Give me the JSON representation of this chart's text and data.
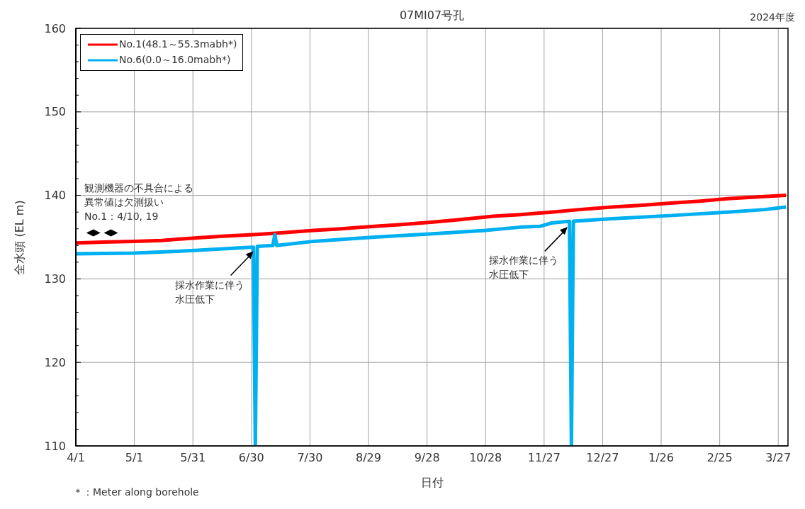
{
  "chart_data": {
    "type": "line",
    "title": "07MI07号孔",
    "xlabel": "日付",
    "ylabel": "全水頭 (EL m)",
    "annotations": [
      "2024年度",
      "観測機器の不具合による異常値は欠測扱い",
      "No.1：4/10, 19",
      "＊：Meter along borehole",
      {
        "text": "採水作業に伴う水圧低下",
        "x": "2024-07-01",
        "y": 133.3
      },
      {
        "text": "採水作業に伴う水圧低下",
        "x": "2024-12-09",
        "y": 136.2
      }
    ],
    "xlim": [
      "2024-04-01",
      "2025-04-01"
    ],
    "xticks": [
      {
        "value": "2024-04-01",
        "label": "4/1"
      },
      {
        "value": "2024-05-01",
        "label": "5/1"
      },
      {
        "value": "2024-05-31",
        "label": "5/31"
      },
      {
        "value": "2024-06-30",
        "label": "6/30"
      },
      {
        "value": "2024-07-30",
        "label": "7/30"
      },
      {
        "value": "2024-08-29",
        "label": "8/29"
      },
      {
        "value": "2024-09-28",
        "label": "9/28"
      },
      {
        "value": "2024-10-28",
        "label": "10/28"
      },
      {
        "value": "2024-11-27",
        "label": "11/27"
      },
      {
        "value": "2024-12-27",
        "label": "12/27"
      },
      {
        "value": "2025-01-26",
        "label": "1/26"
      },
      {
        "value": "2025-02-25",
        "label": "2/25"
      },
      {
        "value": "2025-03-27",
        "label": "3/27"
      }
    ],
    "ylim": [
      110,
      160
    ],
    "yticks": [
      110,
      {
        "value": 112,
        "label": null
      },
      {
        "value": 114,
        "label": null
      },
      {
        "value": 116,
        "label": null
      },
      {
        "value": 118,
        "label": null
      },
      120,
      {
        "value": 122,
        "label": null
      },
      {
        "value": 124,
        "label": null
      },
      {
        "value": 126,
        "label": null
      },
      {
        "value": 128,
        "label": null
      },
      130,
      {
        "value": 132,
        "label": null
      },
      {
        "value": 134,
        "label": null
      },
      {
        "value": 136,
        "label": null
      },
      {
        "value": 138,
        "label": null
      },
      140,
      {
        "value": 142,
        "label": null
      },
      {
        "value": 144,
        "label": null
      },
      {
        "value": 146,
        "label": null
      },
      {
        "value": 148,
        "label": null
      },
      150,
      {
        "value": 152,
        "label": null
      },
      {
        "value": 154,
        "label": null
      },
      {
        "value": 156,
        "label": null
      },
      {
        "value": 158,
        "label": null
      },
      160
    ],
    "grid": true,
    "legend": "top left",
    "marker": "none",
    "line_style": "solid",
    "series": [
      {
        "name": "No.1(48.1～55.3mabh*)",
        "color": "#ff0000",
        "x": [
          "2024-04-01",
          "2024-04-15",
          "2024-05-01",
          "2024-05-15",
          "2024-06-01",
          "2024-06-15",
          "2024-07-01",
          "2024-07-15",
          "2024-08-01",
          "2024-08-15",
          "2024-09-01",
          "2024-09-15",
          "2024-10-01",
          "2024-10-15",
          "2024-11-01",
          "2024-11-15",
          "2024-12-01",
          "2024-12-15",
          "2025-01-01",
          "2025-01-15",
          "2025-02-01",
          "2025-02-15",
          "2025-03-01",
          "2025-03-15",
          "2025-03-31"
        ],
        "values": [
          134.3,
          134.4,
          134.5,
          134.6,
          134.9,
          135.1,
          135.3,
          135.5,
          135.8,
          136.0,
          136.3,
          136.5,
          136.8,
          137.1,
          137.5,
          137.7,
          138.0,
          138.3,
          138.6,
          138.8,
          139.1,
          139.3,
          139.6,
          139.8,
          140.0
        ]
      },
      {
        "name": "No.6(0.0～16.0mabh*)",
        "color": "#00b0f0",
        "x": [
          "2024-04-01",
          "2024-05-01",
          "2024-06-01",
          "2024-06-30",
          "2024-07-01",
          "2024-07-02",
          "2024-07-03",
          "2024-07-11",
          "2024-07-12",
          "2024-07-13",
          "2024-08-01",
          "2024-09-01",
          "2024-10-01",
          "2024-10-28",
          "2024-11-15",
          "2024-11-25",
          "2024-12-01",
          "2024-12-10",
          "2024-12-11",
          "2024-12-12",
          "2025-01-01",
          "2025-02-01",
          "2025-03-01",
          "2025-03-20",
          "2025-03-31"
        ],
        "values": [
          133.0,
          133.1,
          133.4,
          133.8,
          133.8,
          110,
          133.9,
          134.0,
          135.3,
          134.0,
          134.5,
          135.0,
          135.4,
          135.8,
          136.2,
          136.3,
          136.7,
          136.9,
          110,
          136.9,
          137.2,
          137.6,
          138.0,
          138.3,
          138.6
        ]
      },
      {
        "type": "scatter",
        "color": "#000000",
        "marker": "diamond",
        "x": [
          "2024-04-10",
          "2024-04-19"
        ],
        "values": [
          135.5,
          135.5
        ]
      }
    ]
  }
}
